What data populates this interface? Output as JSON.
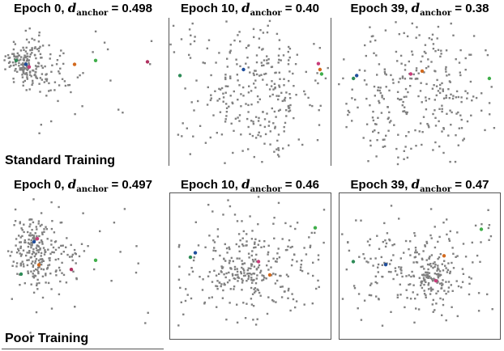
{
  "rows": [
    {
      "label": "Standard Training",
      "panels": [
        {
          "epoch_label": "Epoch 0, ",
          "symbol": "d",
          "symbol_sub": "anchor",
          "value_text": " = 0.498"
        },
        {
          "epoch_label": "Epoch 10, ",
          "symbol": "d",
          "symbol_sub": "anchor",
          "value_text": " = 0.40"
        },
        {
          "epoch_label": "Epoch 39, ",
          "symbol": "d",
          "symbol_sub": "anchor",
          "value_text": " = 0.38"
        }
      ]
    },
    {
      "label": "Poor Training",
      "panels": [
        {
          "epoch_label": "Epoch 0, ",
          "symbol": "d",
          "symbol_sub": "anchor",
          "value_text": " = 0.497"
        },
        {
          "epoch_label": "Epoch 10, ",
          "symbol": "d",
          "symbol_sub": "anchor",
          "value_text": " = 0.46"
        },
        {
          "epoch_label": "Epoch 39, ",
          "symbol": "d",
          "symbol_sub": "anchor",
          "value_text": " = 0.47"
        }
      ]
    }
  ],
  "colors": {
    "points": "#808080",
    "cluster": "#6e6e6e",
    "frame": "#555555",
    "anchors": [
      "#2e8b57",
      "#1f4e9c",
      "#c83c7a",
      "#d2691e",
      "#3fae4a",
      "#b03060"
    ]
  },
  "chart_data": [
    {
      "type": "scatter",
      "row": "Standard Training",
      "epoch": 0,
      "d_anchor": 0.498,
      "description": "points tightly clustered on the left with a few scattered to the right",
      "clusters": [
        {
          "cx": 0.14,
          "cy": 0.35,
          "sx": 0.06,
          "sy": 0.09,
          "n": 160
        },
        {
          "cx": 0.35,
          "cy": 0.45,
          "sx": 0.07,
          "sy": 0.08,
          "n": 35
        }
      ],
      "scatter_n": 20,
      "anchor_points": [
        [
          0.09,
          0.33
        ],
        [
          0.15,
          0.36
        ],
        [
          0.17,
          0.38
        ],
        [
          0.45,
          0.36
        ],
        [
          0.58,
          0.33
        ],
        [
          0.9,
          0.34
        ]
      ]
    },
    {
      "type": "scatter",
      "row": "Standard Training",
      "epoch": 10,
      "d_anchor": 0.4,
      "description": "points spread widely across the panel",
      "clusters": [
        {
          "cx": 0.5,
          "cy": 0.5,
          "sx": 0.22,
          "sy": 0.24,
          "n": 260
        }
      ],
      "scatter_n": 40,
      "anchor_points": [
        [
          0.07,
          0.39
        ],
        [
          0.46,
          0.35
        ],
        [
          0.92,
          0.31
        ],
        [
          0.93,
          0.35
        ],
        [
          0.94,
          0.38
        ]
      ]
    },
    {
      "type": "scatter",
      "row": "Standard Training",
      "epoch": 39,
      "d_anchor": 0.38,
      "description": "points spread widely across the panel",
      "clusters": [
        {
          "cx": 0.5,
          "cy": 0.52,
          "sx": 0.22,
          "sy": 0.24,
          "n": 260
        }
      ],
      "scatter_n": 40,
      "anchor_points": [
        [
          0.1,
          0.41
        ],
        [
          0.12,
          0.39
        ],
        [
          0.45,
          0.38
        ],
        [
          0.52,
          0.36
        ],
        [
          0.93,
          0.41
        ]
      ]
    },
    {
      "type": "scatter",
      "row": "Poor Training",
      "epoch": 0,
      "d_anchor": 0.497,
      "description": "points tightly clustered on the left with a few scattered to the right",
      "clusters": [
        {
          "cx": 0.2,
          "cy": 0.35,
          "sx": 0.07,
          "sy": 0.13,
          "n": 200
        },
        {
          "cx": 0.4,
          "cy": 0.45,
          "sx": 0.08,
          "sy": 0.1,
          "n": 40
        }
      ],
      "scatter_n": 20,
      "anchor_points": [
        [
          0.12,
          0.51
        ],
        [
          0.2,
          0.3
        ],
        [
          0.22,
          0.28
        ],
        [
          0.23,
          0.45
        ],
        [
          0.58,
          0.42
        ],
        [
          0.43,
          0.48
        ]
      ]
    },
    {
      "type": "scatter",
      "row": "Poor Training",
      "epoch": 10,
      "d_anchor": 0.46,
      "description": "points spread with a denser band in the middle",
      "clusters": [
        {
          "cx": 0.5,
          "cy": 0.5,
          "sx": 0.2,
          "sy": 0.17,
          "n": 220
        },
        {
          "cx": 0.47,
          "cy": 0.55,
          "sx": 0.08,
          "sy": 0.05,
          "n": 60
        }
      ],
      "scatter_n": 35,
      "anchor_points": [
        [
          0.13,
          0.44
        ],
        [
          0.16,
          0.41
        ],
        [
          0.55,
          0.47
        ],
        [
          0.62,
          0.56
        ],
        [
          0.9,
          0.24
        ]
      ]
    },
    {
      "type": "scatter",
      "row": "Poor Training",
      "epoch": 39,
      "d_anchor": 0.47,
      "description": "points spread with a dense cluster on the right centre",
      "clusters": [
        {
          "cx": 0.45,
          "cy": 0.5,
          "sx": 0.2,
          "sy": 0.17,
          "n": 180
        },
        {
          "cx": 0.58,
          "cy": 0.58,
          "sx": 0.06,
          "sy": 0.06,
          "n": 90
        }
      ],
      "scatter_n": 35,
      "anchor_points": [
        [
          0.09,
          0.47
        ],
        [
          0.29,
          0.49
        ],
        [
          0.6,
          0.6
        ],
        [
          0.65,
          0.43
        ],
        [
          0.88,
          0.25
        ]
      ]
    }
  ]
}
